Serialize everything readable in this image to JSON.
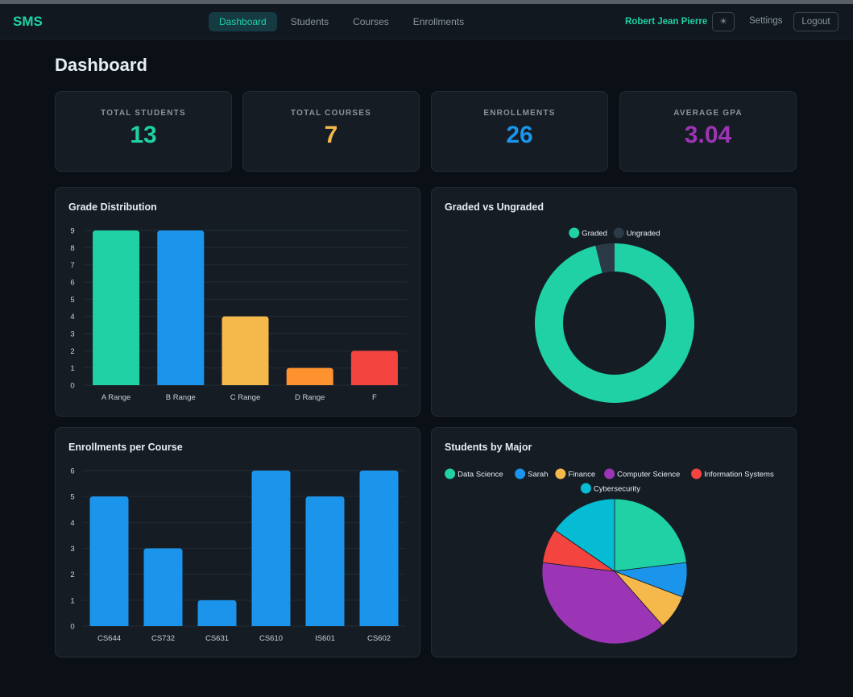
{
  "nav": {
    "brand": "SMS",
    "links": [
      "Dashboard",
      "Students",
      "Courses",
      "Enrollments"
    ],
    "user_name": "Robert Jean Pierre",
    "theme_icon": "☀",
    "settings_label": "Settings",
    "logout_label": "Logout"
  },
  "page": {
    "title": "Dashboard"
  },
  "stats": [
    {
      "label": "TOTAL STUDENTS",
      "value": "13",
      "color": "#1fd1a5"
    },
    {
      "label": "TOTAL COURSES",
      "value": "7",
      "color": "#f5b84a"
    },
    {
      "label": "ENROLLMENTS",
      "value": "26",
      "color": "#1b95ec"
    },
    {
      "label": "AVERAGE GPA",
      "value": "3.04",
      "color": "#9c35b5"
    }
  ],
  "panels": {
    "grade_title": "Grade Distribution",
    "graded_title": "Graded vs Ungraded",
    "enroll_title": "Enrollments per Course",
    "major_title": "Students by Major"
  },
  "chart_data": [
    {
      "type": "bar",
      "title": "Grade Distribution",
      "categories": [
        "A Range",
        "B Range",
        "C Range",
        "D Range",
        "F"
      ],
      "values": [
        9,
        9,
        4,
        1,
        2
      ],
      "colors": [
        "#1fd1a5",
        "#1b95ec",
        "#f5b84a",
        "#fd922e",
        "#f3443f"
      ],
      "ylim": [
        0,
        9
      ],
      "yticks": [
        0,
        1,
        2,
        3,
        4,
        5,
        6,
        7,
        8,
        9
      ],
      "grid": true
    },
    {
      "type": "pie",
      "style": "doughnut",
      "title": "Graded vs Ungraded",
      "labels": [
        "Graded",
        "Ungraded"
      ],
      "values": [
        25,
        1
      ],
      "colors": [
        "#1fd1a5",
        "#2c3a48"
      ],
      "legend": "top"
    },
    {
      "type": "bar",
      "title": "Enrollments per Course",
      "categories": [
        "CS644",
        "CS732",
        "CS631",
        "CS610",
        "IS601",
        "CS602"
      ],
      "values": [
        5,
        3,
        1,
        6,
        5,
        6
      ],
      "colors": [
        "#1b95ec"
      ],
      "ylim": [
        0,
        6
      ],
      "yticks": [
        0,
        1,
        2,
        3,
        4,
        5,
        6
      ],
      "grid": true
    },
    {
      "type": "pie",
      "title": "Students by Major",
      "labels": [
        "Data Science",
        "Sarah",
        "Finance",
        "Computer Science",
        "Information Systems",
        "Cybersecurity"
      ],
      "values": [
        3,
        1,
        1,
        5,
        1,
        2
      ],
      "colors": [
        "#1fd1a5",
        "#1b95ec",
        "#f5b84a",
        "#9c35b5",
        "#f3443f",
        "#06bcd4"
      ],
      "legend": "top"
    }
  ]
}
